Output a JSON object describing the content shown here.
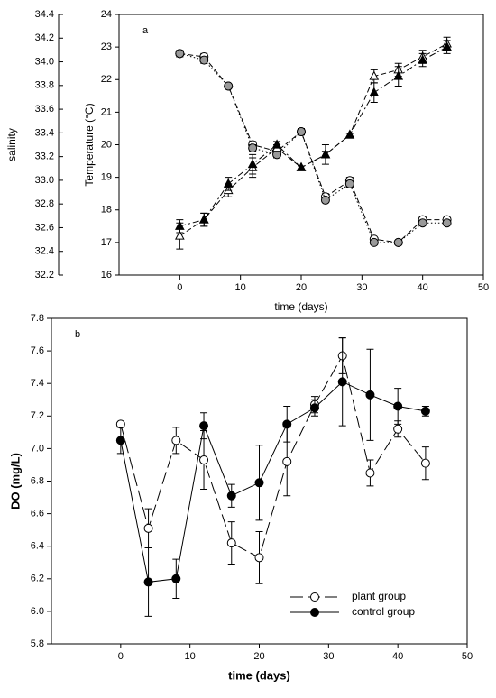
{
  "chart_data": [
    {
      "type": "line",
      "label": "a",
      "x_label": "time (days)",
      "y_label": "Temperature (°C)",
      "y2_label": "salinity",
      "x": [
        0,
        4,
        8,
        12,
        16,
        20,
        24,
        28,
        32,
        36,
        40,
        44
      ],
      "xlim": [
        -10,
        50
      ],
      "xticks": [
        0,
        10,
        20,
        30,
        40,
        50
      ],
      "ylim": [
        16,
        24
      ],
      "yticks": [
        16,
        17,
        18,
        19,
        20,
        21,
        22,
        23,
        24
      ],
      "y2lim": [
        32.2,
        34.4
      ],
      "y2ticks": [
        32.2,
        32.4,
        32.6,
        32.8,
        {
          "value": 33,
          "label": "33.0"
        },
        33.2,
        33.4,
        33.6,
        33.8,
        {
          "value": 34,
          "label": "34.0"
        },
        34.2,
        34.4
      ],
      "series": [
        {
          "color": "#000000",
          "marker": "circle",
          "marker_fill": "#ffffff",
          "line_style": "dashed",
          "values": [
            22.8,
            22.7,
            21.8,
            20.0,
            19.8,
            20.4,
            18.4,
            18.9,
            17.1,
            17.0,
            17.7,
            17.7
          ],
          "errors": [
            0.1,
            0.1,
            0.05,
            0.1,
            0.1,
            0.1,
            0.1,
            0.1,
            0.05,
            0.05,
            0.1,
            0.05
          ]
        },
        {
          "color": "#000000",
          "marker": "circle",
          "marker_fill": "#999999",
          "line_style": "dotted",
          "values": [
            22.8,
            22.6,
            21.8,
            19.9,
            19.7,
            20.4,
            18.3,
            18.8,
            17.0,
            17.0,
            17.6,
            17.6
          ],
          "errors": [
            0.05,
            0.1,
            0.05,
            0.1,
            0.1,
            0.1,
            0.05,
            0.1,
            0.05,
            0.05,
            0.05,
            0.05
          ]
        },
        {
          "color": "#000000",
          "marker": "triangle",
          "marker_fill": "#ffffff",
          "line_style": "dashed",
          "values": [
            17.2,
            17.7,
            18.6,
            19.3,
            19.9,
            19.3,
            19.7,
            20.3,
            22.1,
            22.3,
            22.7,
            23.1
          ],
          "errors": [
            0.4,
            0.2,
            0.2,
            0.3,
            0.1,
            0.05,
            0.1,
            0.05,
            0.2,
            0.2,
            0.2,
            0.2
          ]
        },
        {
          "color": "#000000",
          "marker": "triangle",
          "marker_fill": "#000000",
          "line_style": "dashdot",
          "values": [
            17.5,
            17.7,
            18.8,
            19.4,
            20.0,
            19.3,
            19.7,
            20.3,
            21.6,
            22.1,
            22.6,
            23.0
          ],
          "errors": [
            0.2,
            0.2,
            0.2,
            0.3,
            0.1,
            0.05,
            0.3,
            0.05,
            0.3,
            0.3,
            0.2,
            0.2
          ]
        }
      ]
    },
    {
      "type": "line",
      "label": "b",
      "x_label": "time (days)",
      "y_label": "DO (mg/L)",
      "x": [
        0,
        4,
        8,
        12,
        16,
        20,
        24,
        28,
        32,
        36,
        40,
        44
      ],
      "xlim": [
        -10,
        50
      ],
      "xticks": [
        0,
        10,
        20,
        30,
        40,
        50
      ],
      "ylim": [
        5.8,
        7.8
      ],
      "yticks": [
        5.8,
        {
          "value": 6,
          "label": "6.0"
        },
        6.2,
        6.4,
        6.6,
        6.8,
        {
          "value": 7,
          "label": "7.0"
        },
        7.2,
        7.4,
        7.6,
        7.8
      ],
      "legend": "lower right",
      "series": [
        {
          "name": "plant group",
          "color": "#000000",
          "marker": "circle",
          "marker_fill": "#ffffff",
          "line_style": "longdash",
          "values": [
            7.15,
            6.51,
            7.05,
            6.93,
            6.42,
            6.33,
            6.92,
            7.27,
            7.57,
            6.85,
            7.12,
            6.91
          ],
          "errors": [
            0.01,
            0.12,
            0.08,
            0.18,
            0.13,
            0.16,
            0.21,
            0.05,
            0.11,
            0.08,
            0.05,
            0.1
          ]
        },
        {
          "name": "control group",
          "color": "#000000",
          "marker": "circle",
          "marker_fill": "#000000",
          "line_style": "solid",
          "values": [
            7.05,
            6.18,
            6.2,
            7.14,
            6.71,
            6.79,
            7.15,
            7.25,
            7.41,
            7.33,
            7.26,
            7.23
          ],
          "errors": [
            0.08,
            0.21,
            0.12,
            0.08,
            0.07,
            0.23,
            0.11,
            0.05,
            0.27,
            0.28,
            0.11,
            0.03
          ]
        }
      ]
    }
  ]
}
